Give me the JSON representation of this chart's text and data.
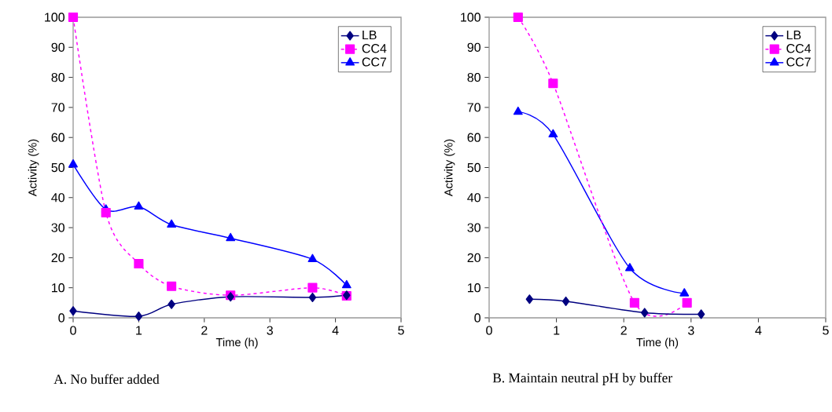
{
  "chart_data": [
    {
      "type": "line",
      "xlabel": "Time (h)",
      "ylabel": "Activity (%)",
      "annotations": [
        "A. No buffer added"
      ],
      "xlim": [
        0,
        5
      ],
      "xticks": [
        0,
        1,
        2,
        3,
        4,
        5
      ],
      "ylim": [
        0,
        100
      ],
      "yticks": [
        0,
        10,
        20,
        30,
        40,
        50,
        60,
        70,
        80,
        90,
        100
      ],
      "legend": "top right",
      "series": [
        {
          "name": "LB",
          "color": "#000080",
          "marker": "diamond",
          "line_style": "solid",
          "x": [
            0,
            1,
            1.5,
            2.4,
            3.65,
            4.17
          ],
          "values": [
            2.3,
            0.5,
            4.5,
            7,
            6.8,
            7.5
          ]
        },
        {
          "name": "CC4",
          "color": "#ff00ff",
          "marker": "square",
          "line_style": "dashed",
          "x": [
            0,
            0.5,
            1,
            1.5,
            2.4,
            3.65,
            4.17
          ],
          "values": [
            100,
            35,
            18,
            10.5,
            7.5,
            10,
            7.3
          ]
        },
        {
          "name": "CC7",
          "color": "#0000ff",
          "marker": "triangle",
          "line_style": "solid",
          "x": [
            0,
            0.5,
            1,
            1.5,
            2.4,
            3.65,
            4.17
          ],
          "values": [
            51,
            36,
            37,
            31,
            26.5,
            19.5,
            10.8
          ]
        }
      ]
    },
    {
      "type": "line",
      "xlabel": "Time (h)",
      "ylabel": "Activity (%)",
      "annotations": [
        "B. Maintain neutral pH by buffer"
      ],
      "xlim": [
        0,
        5
      ],
      "xticks": [
        0,
        1,
        2,
        3,
        4,
        5
      ],
      "ylim": [
        0,
        100
      ],
      "yticks": [
        0,
        10,
        20,
        30,
        40,
        50,
        60,
        70,
        80,
        90,
        100
      ],
      "legend": "top right",
      "series": [
        {
          "name": "LB",
          "color": "#000080",
          "marker": "diamond",
          "line_style": "solid",
          "x": [
            0.6,
            1.14,
            2.31,
            3.15
          ],
          "values": [
            6.2,
            5.5,
            1.7,
            1.2
          ]
        },
        {
          "name": "CC4",
          "color": "#ff00ff",
          "marker": "square",
          "line_style": "dashed",
          "x": [
            0.43,
            0.95,
            2.16,
            2.94
          ],
          "values": [
            100,
            78,
            5,
            5
          ]
        },
        {
          "name": "CC7",
          "color": "#0000ff",
          "marker": "triangle",
          "line_style": "solid",
          "x": [
            0.43,
            0.95,
            2.09,
            2.9
          ],
          "values": [
            68.5,
            61,
            16.5,
            8.1
          ]
        }
      ]
    }
  ]
}
